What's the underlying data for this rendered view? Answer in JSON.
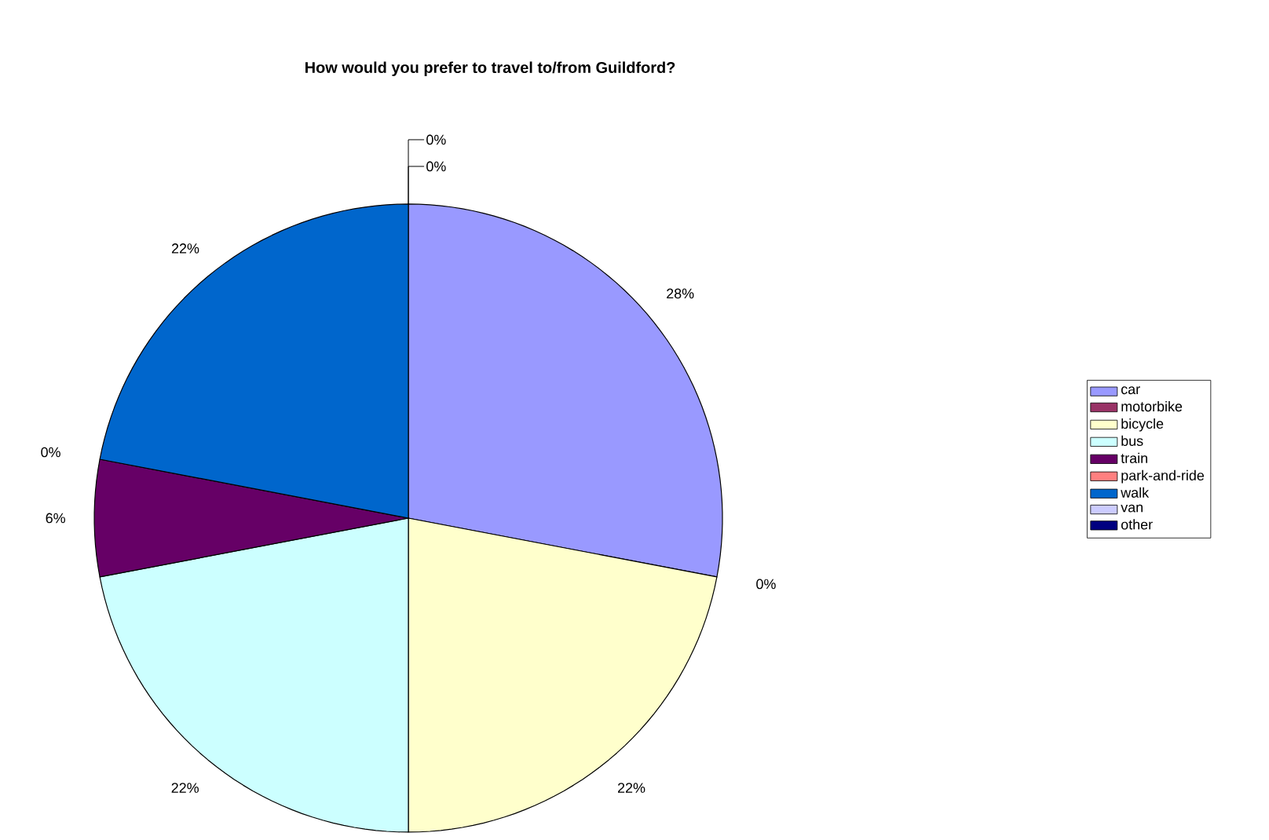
{
  "chart_data": {
    "type": "pie",
    "title": "How would you prefer to travel to/from Guildford?",
    "categories": [
      "car",
      "motorbike",
      "bicycle",
      "bus",
      "train",
      "park-and-ride",
      "walk",
      "van",
      "other"
    ],
    "values": [
      28,
      0,
      22,
      22,
      6,
      0,
      22,
      0,
      0
    ],
    "value_labels": [
      "28%",
      "0%",
      "22%",
      "22%",
      "6%",
      "0%",
      "22%",
      "0%",
      "0%"
    ],
    "colors": [
      "#9999ff",
      "#993366",
      "#ffffcc",
      "#ccffff",
      "#660066",
      "#ff8080",
      "#0066cc",
      "#ccccff",
      "#000080"
    ],
    "legend": "right"
  }
}
